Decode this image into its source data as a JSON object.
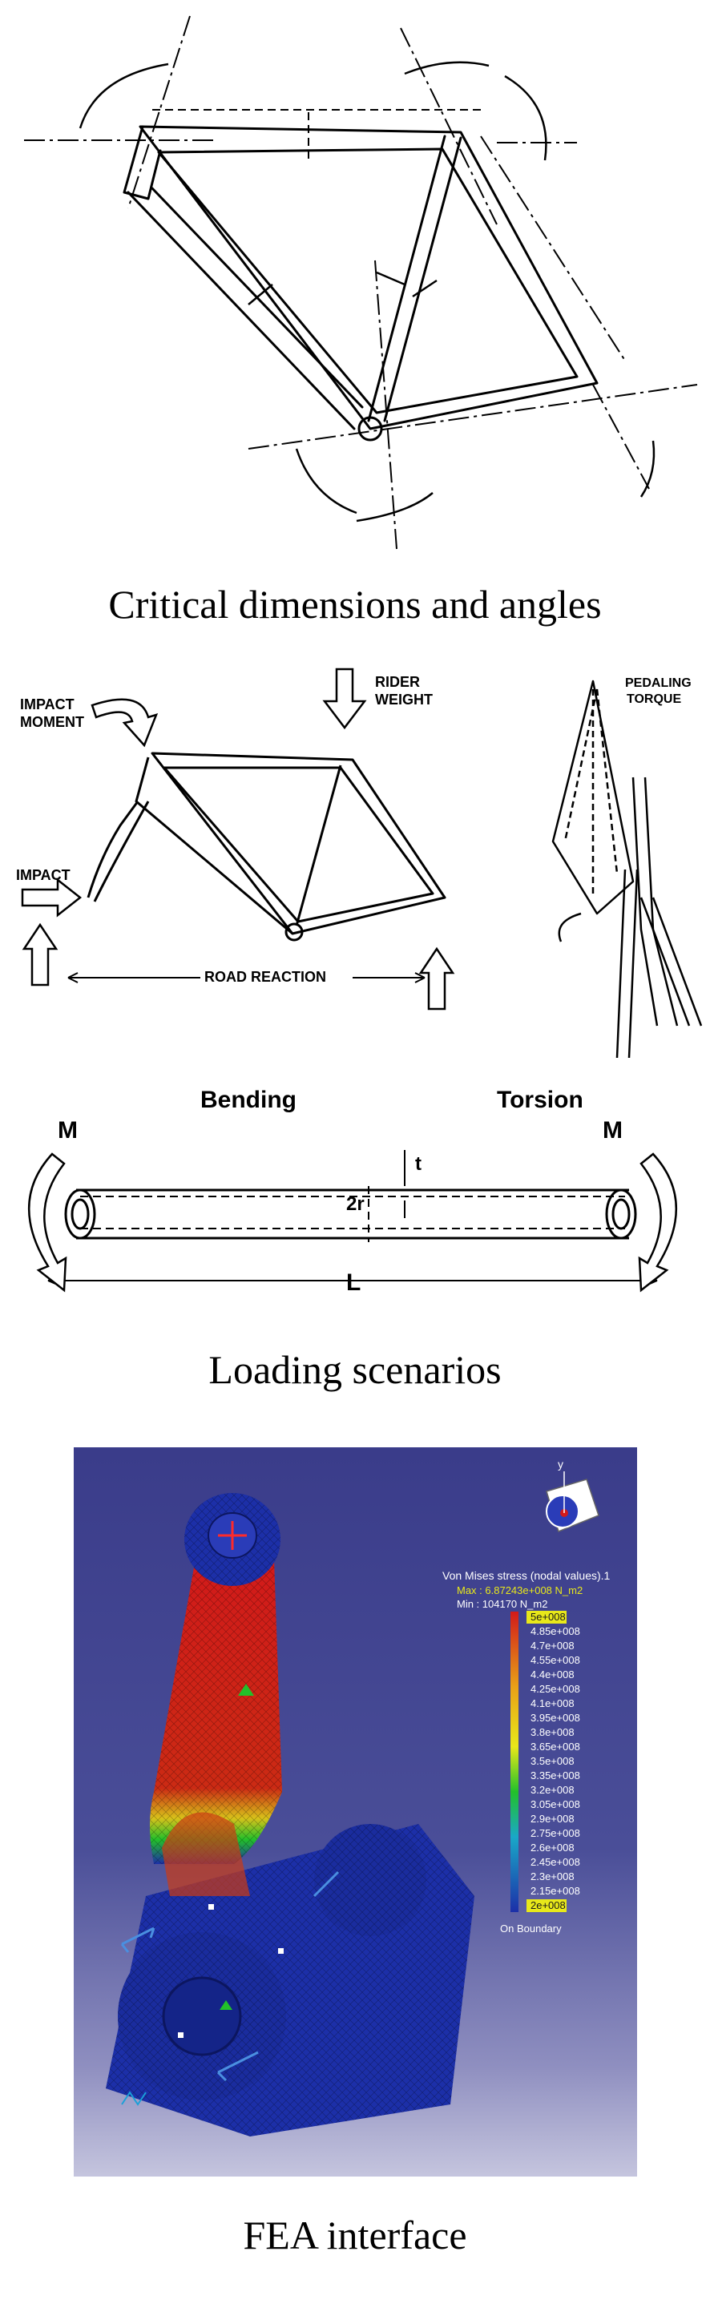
{
  "captions": {
    "frame_geometry": "Critical dimensions and angles",
    "loading": "Loading scenarios",
    "fea": "FEA interface"
  },
  "loads_frame": {
    "impact_moment": [
      "IMPACT",
      "MOMENT"
    ],
    "rider_weight": [
      "RIDER",
      "WEIGHT"
    ],
    "impact": "IMPACT",
    "road_reaction": "ROAD  REACTION",
    "pedaling_torque": [
      "PEDALING",
      "TORQUE"
    ]
  },
  "tube": {
    "bending": "Bending",
    "torsion": "Torsion",
    "moment_left": "M",
    "moment_right": "M",
    "thickness": "t",
    "radius": "2r",
    "length": "L"
  },
  "fea": {
    "title": "Von Mises stress (nodal values).1",
    "max": "Max : 6.87243e+008 N_m2",
    "min": "Min : 104170 N_m2",
    "scale": [
      "5e+008",
      "4.85e+008",
      "4.7e+008",
      "4.55e+008",
      "4.4e+008",
      "4.25e+008",
      "4.1e+008",
      "3.95e+008",
      "3.8e+008",
      "3.65e+008",
      "3.5e+008",
      "3.35e+008",
      "3.2e+008",
      "3.05e+008",
      "2.9e+008",
      "2.75e+008",
      "2.6e+008",
      "2.45e+008",
      "2.3e+008",
      "2.15e+008",
      "2e+008"
    ],
    "boundary": "On Boundary",
    "axis_label": "y",
    "colors": {
      "high": "#d21a1a",
      "mid": "#22c02a",
      "low": "#1c2fa8",
      "highlight": "#ffff00"
    }
  }
}
